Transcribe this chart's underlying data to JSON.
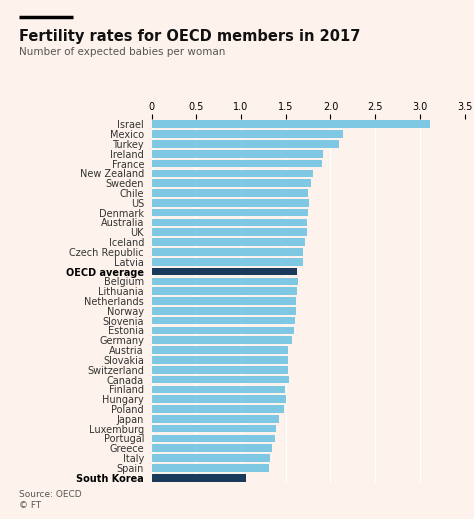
{
  "title": "Fertility rates for OECD members in 2017",
  "subtitle": "Number of expected babies per woman",
  "source_line1": "Source: OECD",
  "source_line2": "© FT",
  "xlim": [
    0,
    3.5
  ],
  "xticks": [
    0,
    0.5,
    1.0,
    1.5,
    2.0,
    2.5,
    3.0,
    3.5
  ],
  "background_color": "#fdf3ec",
  "bar_color_default": "#7ec8e3",
  "bar_color_highlight": "#1a3a5c",
  "categories": [
    "Israel",
    "Mexico",
    "Turkey",
    "Ireland",
    "France",
    "New Zealand",
    "Sweden",
    "Chile",
    "US",
    "Denmark",
    "Australia",
    "UK",
    "Iceland",
    "Czech Republic",
    "Latvia",
    "OECD average",
    "Belgium",
    "Lithuania",
    "Netherlands",
    "Norway",
    "Slovenia",
    "Estonia",
    "Germany",
    "Austria",
    "Slovakia",
    "Switzerland",
    "Canada",
    "Finland",
    "Hungary",
    "Poland",
    "Japan",
    "Luxemburg",
    "Portugal",
    "Greece",
    "Italy",
    "Spain",
    "South Korea"
  ],
  "values": [
    3.11,
    2.14,
    2.1,
    1.92,
    1.9,
    1.81,
    1.78,
    1.75,
    1.76,
    1.75,
    1.74,
    1.74,
    1.71,
    1.69,
    1.69,
    1.63,
    1.64,
    1.63,
    1.62,
    1.62,
    1.6,
    1.59,
    1.57,
    1.52,
    1.52,
    1.52,
    1.54,
    1.49,
    1.5,
    1.48,
    1.43,
    1.39,
    1.38,
    1.35,
    1.32,
    1.31,
    1.05
  ],
  "highlight_indices": [
    15,
    36
  ],
  "title_fontsize": 10.5,
  "subtitle_fontsize": 7.5,
  "tick_fontsize": 7,
  "label_fontsize": 7,
  "source_fontsize": 6.5
}
